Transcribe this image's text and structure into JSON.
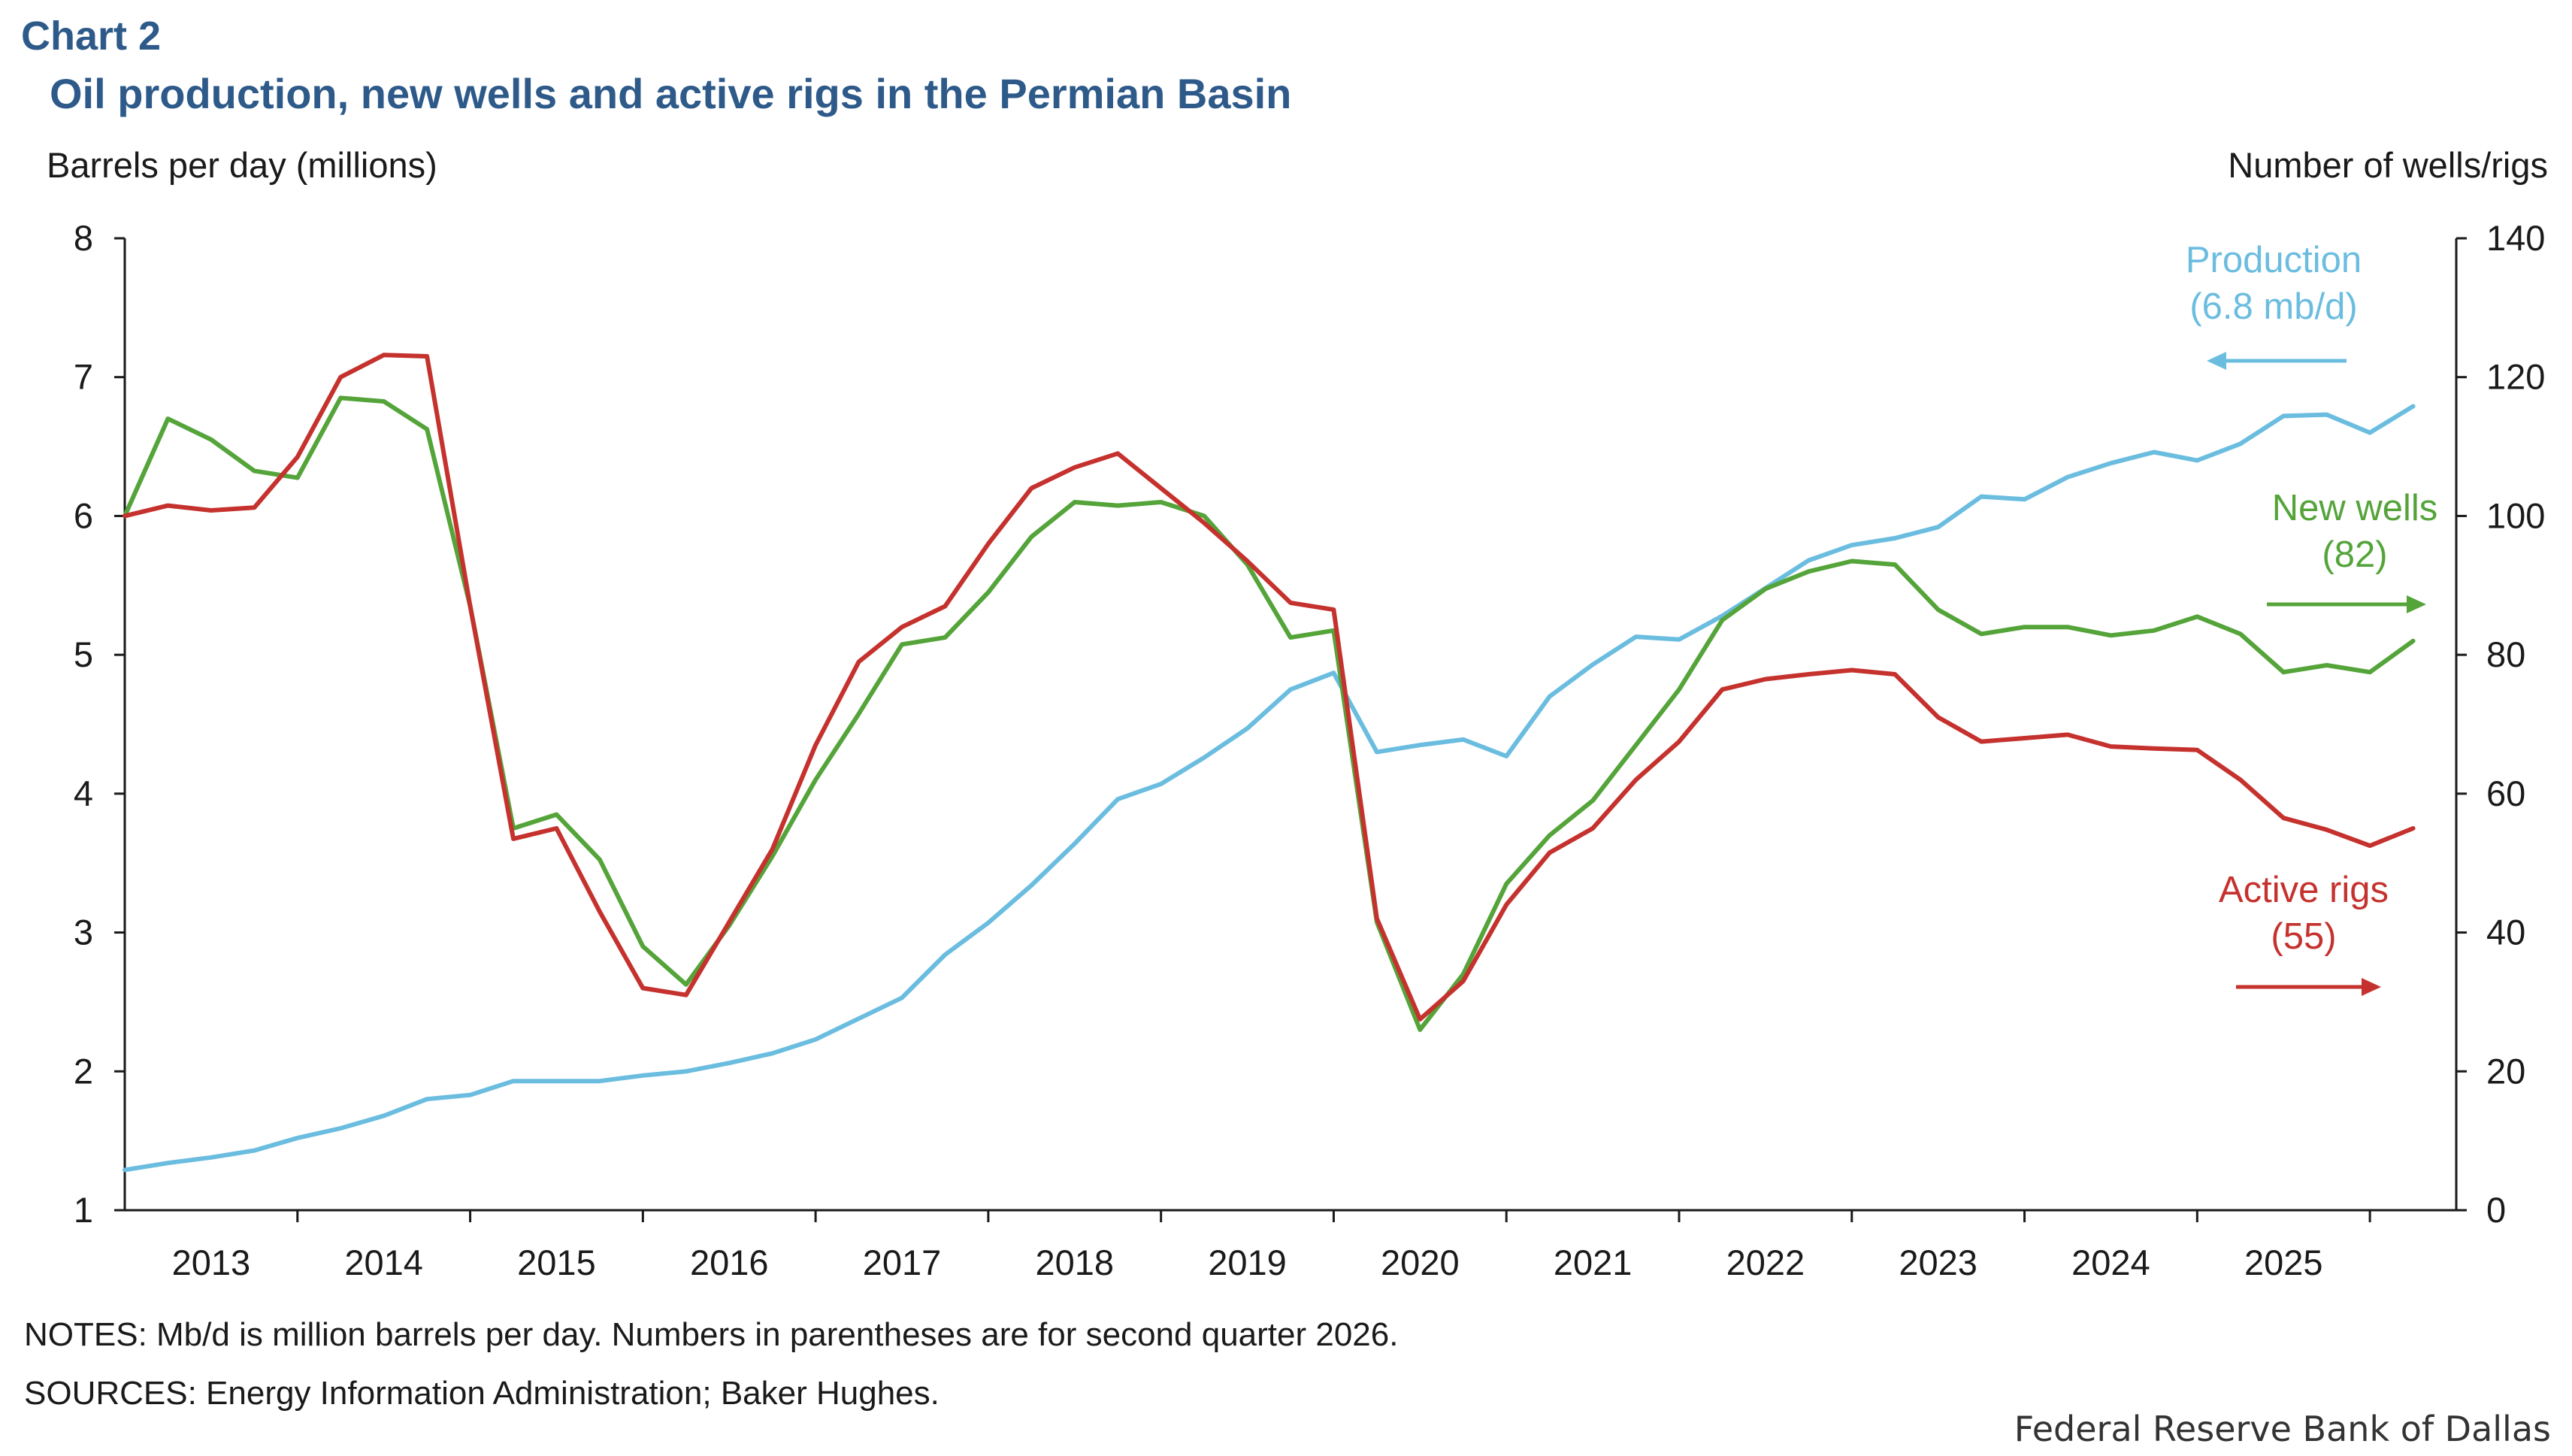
{
  "header": {
    "chart_number": "Chart 2",
    "title": "Oil production, new wells and active rigs in the Permian Basin"
  },
  "notes": "NOTES: Mb/d is million barrels per day. Numbers in parentheses are for second quarter 2026.",
  "sources": "SOURCES: Energy Information Administration; Baker Hughes.",
  "credit": "Federal Reserve Bank of Dallas",
  "colors": {
    "title": "#2e5a8a",
    "production": "#6bbde0",
    "new_wells": "#54a43a",
    "active_rigs": "#c5322e",
    "axis": "#1a1a1a"
  },
  "chart_data": {
    "type": "line",
    "title": "Oil production, new wells and active rigs in the Permian Basin",
    "ylabel_left": "Barrels per day (millions)",
    "ylabel_right": "Number of wells/rigs",
    "ylim_left": [
      1,
      8
    ],
    "ylim_right": [
      0,
      140
    ],
    "yticks_left": [
      "1",
      "2",
      "3",
      "4",
      "5",
      "6",
      "7",
      "8"
    ],
    "yticks_right": [
      "0",
      "20",
      "40",
      "60",
      "80",
      "100",
      "120",
      "140"
    ],
    "x_tick_labels": [
      "2013",
      "2014",
      "2015",
      "2016",
      "2017",
      "2018",
      "2019",
      "2020",
      "2021",
      "2022",
      "2023",
      "2024",
      "2025"
    ],
    "x_start_year": 2013,
    "x_start_quarter": 1,
    "grid": false,
    "series": [
      {
        "name": "Production",
        "annotation": [
          "Production",
          "(6.8 mb/d)"
        ],
        "axis": "left",
        "arrow": "left",
        "color": "#6bbde0",
        "values": [
          1.29,
          1.34,
          1.38,
          1.43,
          1.52,
          1.59,
          1.68,
          1.8,
          1.83,
          1.93,
          1.93,
          1.93,
          1.97,
          2.0,
          2.06,
          2.13,
          2.23,
          2.38,
          2.53,
          2.84,
          3.07,
          3.34,
          3.64,
          3.96,
          4.07,
          4.26,
          4.47,
          4.75,
          4.87,
          4.3,
          4.35,
          4.39,
          4.27,
          4.7,
          4.93,
          5.13,
          5.11,
          5.28,
          5.48,
          5.68,
          5.79,
          5.84,
          5.92,
          6.14,
          6.12,
          6.28,
          6.38,
          6.46,
          6.4,
          6.52,
          6.72,
          6.73,
          6.6,
          6.79
        ]
      },
      {
        "name": "New wells",
        "annotation": [
          "New wells",
          "(82)"
        ],
        "axis": "right",
        "arrow": "right",
        "color": "#54a43a",
        "values": [
          100,
          114,
          111,
          106.5,
          105.5,
          117,
          116.5,
          112.5,
          87,
          55,
          57,
          50.5,
          38,
          32.5,
          41,
          51,
          62,
          71.5,
          81.5,
          82.5,
          89,
          97,
          102,
          101.5,
          102,
          100,
          93,
          82.5,
          83.5,
          41.5,
          26,
          34,
          47,
          54,
          59,
          67,
          75,
          85,
          89.5,
          92,
          93.5,
          93,
          86.5,
          83,
          84,
          84,
          82.8,
          83.5,
          85.5,
          83,
          77.5,
          78.5,
          77.5,
          82
        ]
      },
      {
        "name": "Active rigs",
        "annotation": [
          "Active rigs",
          "(55)"
        ],
        "axis": "right",
        "arrow": "right",
        "color": "#c5322e",
        "values": [
          100,
          101.5,
          100.8,
          101.2,
          108.5,
          120,
          123.2,
          123,
          87,
          53.5,
          55,
          43,
          32,
          31,
          41.5,
          52,
          67,
          79,
          84,
          87,
          96,
          104,
          107,
          109,
          104,
          99,
          93.5,
          87.5,
          86.5,
          42,
          27.5,
          33,
          44,
          51.5,
          55,
          62,
          67.5,
          75,
          76.5,
          77.2,
          77.8,
          77.2,
          71,
          67.5,
          68,
          68.5,
          66.8,
          66.5,
          66.3,
          62,
          56.5,
          54.8,
          52.5,
          55
        ]
      }
    ]
  }
}
